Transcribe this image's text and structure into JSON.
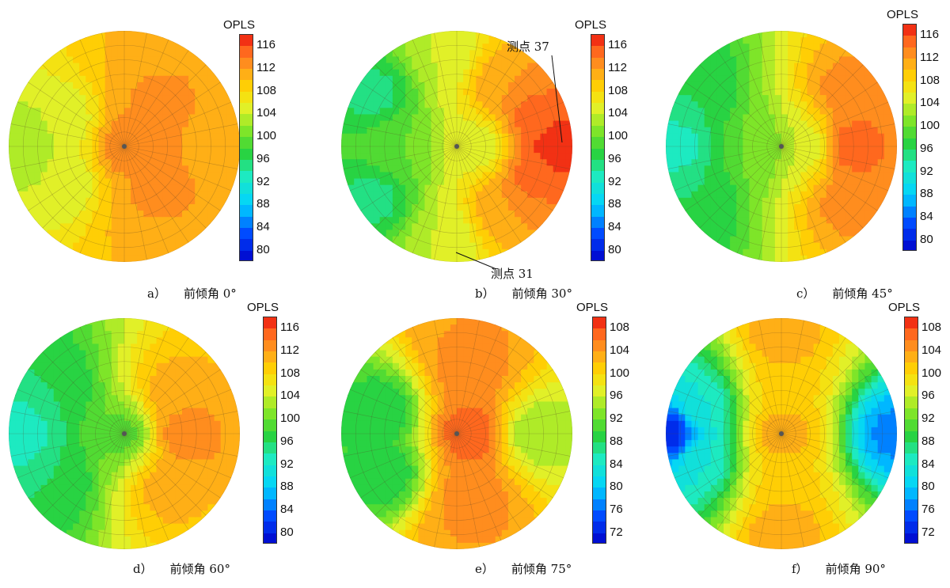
{
  "chart_data": [
    {
      "type": "heatmap",
      "panel_letter": "a）",
      "panel_caption": "前倾角 0°",
      "colorbar_title": "OPLS",
      "colorbar_ticks": [
        116,
        112,
        108,
        104,
        100,
        96,
        92,
        88,
        84,
        80
      ],
      "zrange": [
        78,
        118
      ],
      "base_level": 106,
      "hotspots": [
        {
          "x": 0.0,
          "y": 0.0,
          "value": 114
        },
        {
          "x": 0.3,
          "y": 0.0,
          "value": 112
        },
        {
          "x": 0.6,
          "y": 0.0,
          "value": 112
        },
        {
          "x": 0.25,
          "y": 0.5,
          "value": 113
        },
        {
          "x": 0.25,
          "y": -0.5,
          "value": 113
        },
        {
          "x": 0.15,
          "y": 0.75,
          "value": 110
        },
        {
          "x": 0.15,
          "y": -0.75,
          "value": 110
        },
        {
          "x": -0.5,
          "y": 0.2,
          "value": 104
        },
        {
          "x": -0.5,
          "y": -0.3,
          "value": 104
        },
        {
          "x": -0.9,
          "y": 0.0,
          "value": 102
        }
      ],
      "annotations": []
    },
    {
      "type": "heatmap",
      "panel_letter": "b）",
      "panel_caption": "前倾角 30°",
      "colorbar_title": "OPLS",
      "colorbar_ticks": [
        116,
        112,
        108,
        104,
        100,
        96,
        92,
        88,
        84,
        80
      ],
      "zrange": [
        78,
        118
      ],
      "base_level": 104,
      "hotspots": [
        {
          "x": 0.85,
          "y": 0.0,
          "value": 118
        },
        {
          "x": 0.65,
          "y": 0.25,
          "value": 115
        },
        {
          "x": 0.65,
          "y": -0.25,
          "value": 115
        },
        {
          "x": 0.4,
          "y": 0.55,
          "value": 112
        },
        {
          "x": 0.4,
          "y": -0.55,
          "value": 112
        },
        {
          "x": 0.2,
          "y": 0.0,
          "value": 104
        },
        {
          "x": -0.7,
          "y": 0.45,
          "value": 95
        },
        {
          "x": -0.7,
          "y": -0.45,
          "value": 95
        },
        {
          "x": -0.5,
          "y": 0.0,
          "value": 100
        },
        {
          "x": -0.1,
          "y": 0.8,
          "value": 104
        },
        {
          "x": -0.1,
          "y": -0.8,
          "value": 104
        }
      ],
      "annotations": [
        {
          "text": "测点 37",
          "point": {
            "x": 0.9,
            "y": 0.0
          }
        },
        {
          "text": "测点 31",
          "point": {
            "x": 0.0,
            "y": -1.0
          }
        }
      ]
    },
    {
      "type": "heatmap",
      "panel_letter": "c）",
      "panel_caption": "前倾角 45°",
      "colorbar_title": "OPLS",
      "colorbar_ticks": [
        116,
        112,
        108,
        104,
        100,
        96,
        92,
        88,
        84,
        80
      ],
      "zrange": [
        78,
        118
      ],
      "base_level": 103,
      "hotspots": [
        {
          "x": 0.6,
          "y": 0.0,
          "value": 116
        },
        {
          "x": 0.55,
          "y": 0.45,
          "value": 113
        },
        {
          "x": 0.55,
          "y": -0.45,
          "value": 113
        },
        {
          "x": 0.2,
          "y": 0.0,
          "value": 104
        },
        {
          "x": -0.2,
          "y": 0.0,
          "value": 100
        },
        {
          "x": -0.92,
          "y": 0.0,
          "value": 93
        },
        {
          "x": -0.7,
          "y": 0.5,
          "value": 96
        },
        {
          "x": -0.7,
          "y": -0.5,
          "value": 96
        }
      ],
      "annotations": []
    },
    {
      "type": "heatmap",
      "panel_letter": "d）",
      "panel_caption": "前倾角 60°",
      "colorbar_title": "OPLS",
      "colorbar_ticks": [
        116,
        112,
        108,
        104,
        100,
        96,
        92,
        88,
        84,
        80
      ],
      "zrange": [
        78,
        118
      ],
      "base_level": 103,
      "hotspots": [
        {
          "x": 0.5,
          "y": 0.0,
          "value": 114
        },
        {
          "x": 0.4,
          "y": 0.35,
          "value": 111
        },
        {
          "x": 0.35,
          "y": -0.45,
          "value": 111
        },
        {
          "x": 0.0,
          "y": 0.0,
          "value": 99
        },
        {
          "x": -0.9,
          "y": 0.0,
          "value": 92
        },
        {
          "x": -0.6,
          "y": 0.4,
          "value": 96
        },
        {
          "x": -0.6,
          "y": -0.4,
          "value": 96
        }
      ],
      "annotations": []
    },
    {
      "type": "heatmap",
      "panel_letter": "e）",
      "panel_caption": "前倾角 75°",
      "colorbar_title": "OPLS",
      "colorbar_ticks": [
        108,
        104,
        100,
        96,
        92,
        88,
        84,
        80,
        76,
        72
      ],
      "zrange": [
        70,
        110
      ],
      "base_level": 97,
      "hotspots": [
        {
          "x": 0.1,
          "y": 0.0,
          "value": 108
        },
        {
          "x": 0.1,
          "y": 0.55,
          "value": 106
        },
        {
          "x": 0.1,
          "y": -0.55,
          "value": 106
        },
        {
          "x": 0.0,
          "y": 0.9,
          "value": 104
        },
        {
          "x": 0.0,
          "y": -0.9,
          "value": 104
        },
        {
          "x": -0.65,
          "y": 0.2,
          "value": 88
        },
        {
          "x": -0.6,
          "y": -0.35,
          "value": 88
        },
        {
          "x": 0.7,
          "y": 0.0,
          "value": 94
        }
      ],
      "annotations": []
    },
    {
      "type": "heatmap",
      "panel_letter": "f）",
      "panel_caption": "前倾角 90°",
      "colorbar_title": "OPLS",
      "colorbar_ticks": [
        108,
        104,
        100,
        96,
        92,
        88,
        84,
        80,
        76,
        72
      ],
      "zrange": [
        70,
        110
      ],
      "base_level": 96,
      "hotspots": [
        {
          "x": -0.95,
          "y": 0.0,
          "value": 72
        },
        {
          "x": 0.95,
          "y": 0.0,
          "value": 77
        },
        {
          "x": -0.7,
          "y": 0.25,
          "value": 84
        },
        {
          "x": -0.7,
          "y": -0.25,
          "value": 84
        },
        {
          "x": 0.0,
          "y": 0.0,
          "value": 104
        },
        {
          "x": 0.0,
          "y": 0.85,
          "value": 104
        },
        {
          "x": 0.0,
          "y": -0.85,
          "value": 104
        },
        {
          "x": 0.0,
          "y": 0.4,
          "value": 101
        },
        {
          "x": 0.0,
          "y": -0.4,
          "value": 101
        }
      ],
      "annotations": []
    }
  ]
}
